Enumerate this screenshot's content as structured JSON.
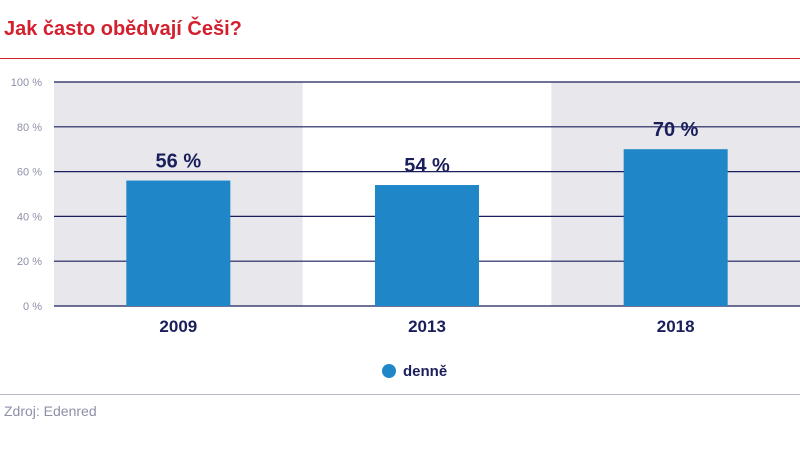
{
  "header": {
    "title": "Jak často obědvají Češi?"
  },
  "footer": {
    "source": "Zdroj: Edenred"
  },
  "colors": {
    "bar": "#1f87c8",
    "grid": "#1a1f5c",
    "band": "#e7e7ec",
    "title": "#d3202f"
  },
  "chart_data": {
    "type": "bar",
    "title": "Jak často obědvají Češi?",
    "categories": [
      "2009",
      "2013",
      "2018"
    ],
    "series": [
      {
        "name": "denně",
        "values": [
          56,
          54,
          70
        ]
      }
    ],
    "data_labels": [
      "56 %",
      "54 %",
      "70 %"
    ],
    "ylim": [
      0,
      100
    ],
    "yticks": [
      0,
      20,
      40,
      60,
      80,
      100
    ],
    "ytick_labels": [
      "0 %",
      "20 %",
      "40 %",
      "60 %",
      "80 %",
      "100 %"
    ],
    "xlabel": "",
    "ylabel": "",
    "grid": true,
    "legend": {
      "position": "bottom-center",
      "entries": [
        "denně"
      ]
    }
  }
}
